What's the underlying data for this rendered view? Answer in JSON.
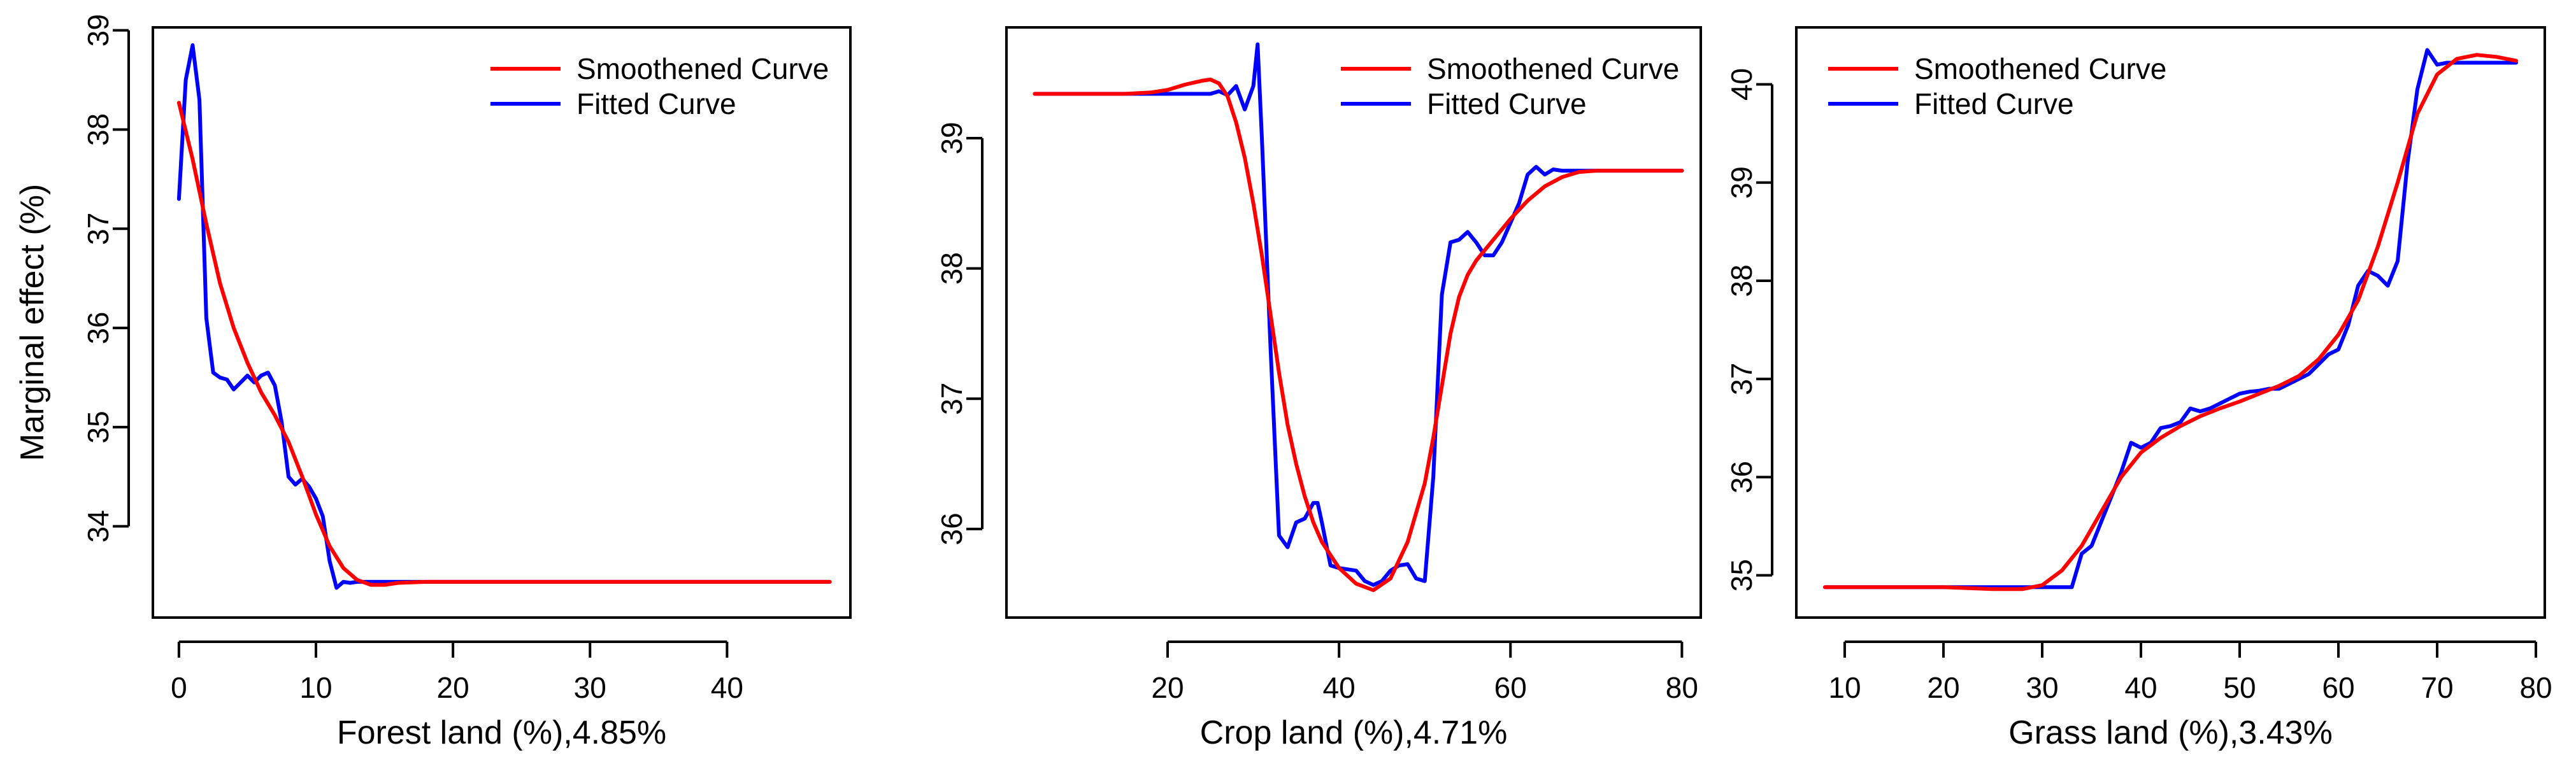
{
  "colors": {
    "smoothened": "#ff0000",
    "fitted": "#0000ff"
  },
  "chart_data": [
    {
      "type": "line",
      "xlabel": "Forest land (%),4.85%",
      "ylabel": "Marginal effect (%)",
      "xlim": [
        -1.9,
        49
      ],
      "ylim": [
        33.08,
        39.03
      ],
      "xticks": [
        0,
        10,
        20,
        30,
        40
      ],
      "yticks": [
        34,
        35,
        36,
        37,
        38,
        39
      ],
      "legend_position": "top-right",
      "series": [
        {
          "name": "Smoothened Curve",
          "color": "#ff0000",
          "x": [
            0,
            1,
            2,
            3,
            4,
            5,
            6,
            7,
            8,
            9,
            10,
            11,
            12,
            13,
            14,
            15,
            16,
            18,
            20,
            25,
            30,
            35,
            40,
            45,
            47.5
          ],
          "y": [
            38.27,
            37.7,
            37.05,
            36.45,
            36.0,
            35.65,
            35.35,
            35.12,
            34.85,
            34.5,
            34.12,
            33.8,
            33.58,
            33.46,
            33.41,
            33.41,
            33.43,
            33.44,
            33.44,
            33.44,
            33.44,
            33.44,
            33.44,
            33.44,
            33.44
          ]
        },
        {
          "name": "Fitted Curve",
          "color": "#0000ff",
          "x": [
            0,
            0.5,
            1,
            1.5,
            2,
            2.5,
            3,
            3.5,
            4,
            4.5,
            5,
            5.5,
            6,
            6.5,
            7,
            7.5,
            8,
            8.5,
            9,
            9.5,
            10,
            10.5,
            11,
            11.5,
            12,
            12.5,
            13,
            14,
            15,
            20,
            25,
            30,
            35,
            40,
            47.5
          ],
          "y": [
            37.3,
            38.5,
            38.85,
            38.3,
            36.1,
            35.55,
            35.5,
            35.48,
            35.38,
            35.45,
            35.52,
            35.45,
            35.52,
            35.55,
            35.42,
            35.05,
            34.5,
            34.42,
            34.48,
            34.4,
            34.28,
            34.1,
            33.65,
            33.38,
            33.44,
            33.43,
            33.44,
            33.44,
            33.44,
            33.44,
            33.44,
            33.44,
            33.44,
            33.44,
            33.44
          ]
        }
      ]
    },
    {
      "type": "line",
      "xlabel": "Crop land (%),4.71%",
      "ylabel": "",
      "xlim": [
        1.2,
        82.2
      ],
      "ylim": [
        35.32,
        39.85
      ],
      "xticks": [
        20,
        40,
        60,
        80
      ],
      "yticks": [
        36,
        37,
        38,
        39
      ],
      "legend_position": "top-right",
      "series": [
        {
          "name": "Smoothened Curve",
          "color": "#ff0000",
          "x": [
            4.5,
            10,
            15,
            18,
            20,
            22,
            24,
            25,
            26,
            27,
            28,
            29,
            30,
            31,
            32,
            33,
            34,
            35,
            36,
            37,
            38,
            40,
            42,
            44,
            46,
            48,
            50,
            51,
            52,
            53,
            54,
            55,
            56,
            58,
            60,
            62,
            64,
            66,
            68,
            70,
            75,
            80
          ],
          "y": [
            39.34,
            39.34,
            39.34,
            39.35,
            39.37,
            39.41,
            39.44,
            39.45,
            39.42,
            39.32,
            39.12,
            38.85,
            38.5,
            38.1,
            37.65,
            37.2,
            36.8,
            36.5,
            36.25,
            36.05,
            35.9,
            35.7,
            35.58,
            35.53,
            35.62,
            35.9,
            36.35,
            36.7,
            37.1,
            37.5,
            37.78,
            37.95,
            38.06,
            38.22,
            38.38,
            38.52,
            38.63,
            38.7,
            38.74,
            38.75,
            38.75,
            38.75
          ]
        },
        {
          "name": "Fitted Curve",
          "color": "#0000ff",
          "x": [
            4.5,
            10,
            20,
            24,
            25,
            26,
            27,
            28,
            29,
            30,
            30.5,
            31,
            32,
            33,
            34,
            35,
            36,
            37,
            37.5,
            38,
            39,
            40,
            42,
            43,
            44,
            45,
            46,
            47,
            48,
            49,
            50,
            51,
            52,
            53,
            54,
            55,
            56,
            57,
            58,
            59,
            60,
            61,
            62,
            63,
            64,
            65,
            66,
            70,
            75,
            80
          ],
          "y": [
            39.34,
            39.34,
            39.34,
            39.34,
            39.34,
            39.36,
            39.33,
            39.4,
            39.22,
            39.4,
            39.72,
            39.0,
            37.4,
            35.95,
            35.86,
            36.05,
            36.08,
            36.2,
            36.2,
            36.05,
            35.72,
            35.7,
            35.68,
            35.6,
            35.57,
            35.6,
            35.68,
            35.72,
            35.73,
            35.62,
            35.6,
            36.4,
            37.8,
            38.2,
            38.22,
            38.28,
            38.2,
            38.1,
            38.1,
            38.2,
            38.35,
            38.5,
            38.72,
            38.78,
            38.72,
            38.76,
            38.75,
            38.75,
            38.75,
            38.75
          ]
        }
      ]
    },
    {
      "type": "line",
      "xlabel": "Grass land (%),3.43%",
      "ylabel": "",
      "xlim": [
        5.1,
        80.9
      ],
      "ylim": [
        34.57,
        40.58
      ],
      "xticks": [
        10,
        20,
        30,
        40,
        50,
        60,
        70,
        80
      ],
      "yticks": [
        35,
        36,
        37,
        38,
        39,
        40
      ],
      "legend_position": "top-left",
      "series": [
        {
          "name": "Smoothened Curve",
          "color": "#ff0000",
          "x": [
            8,
            15,
            20,
            25,
            28,
            30,
            32,
            34,
            36,
            38,
            40,
            42,
            44,
            46,
            48,
            50,
            52,
            54,
            56,
            58,
            60,
            62,
            64,
            66,
            68,
            70,
            72,
            74,
            76,
            78
          ],
          "y": [
            34.88,
            34.88,
            34.88,
            34.86,
            34.86,
            34.9,
            35.05,
            35.3,
            35.65,
            36.0,
            36.25,
            36.4,
            36.52,
            36.62,
            36.7,
            36.77,
            36.85,
            36.93,
            37.03,
            37.2,
            37.45,
            37.8,
            38.35,
            39.0,
            39.7,
            40.1,
            40.26,
            40.3,
            40.28,
            40.24
          ]
        },
        {
          "name": "Fitted Curve",
          "color": "#0000ff",
          "x": [
            8,
            15,
            20,
            25,
            30,
            33,
            34,
            35,
            36,
            37,
            38,
            39,
            40,
            41,
            42,
            43,
            44,
            45,
            46,
            47,
            48,
            49,
            50,
            51,
            52,
            53,
            54,
            55,
            56,
            57,
            58,
            59,
            60,
            61,
            62,
            63,
            64,
            65,
            66,
            67,
            68,
            69,
            70,
            71,
            72,
            73,
            75,
            78
          ],
          "y": [
            34.88,
            34.88,
            34.88,
            34.88,
            34.88,
            34.88,
            35.22,
            35.3,
            35.55,
            35.8,
            36.05,
            36.35,
            36.3,
            36.35,
            36.5,
            36.52,
            36.56,
            36.7,
            36.67,
            36.7,
            36.75,
            36.8,
            36.85,
            36.87,
            36.88,
            36.9,
            36.9,
            36.95,
            37.0,
            37.05,
            37.15,
            37.25,
            37.3,
            37.55,
            37.95,
            38.1,
            38.05,
            37.95,
            38.2,
            39.2,
            39.95,
            40.35,
            40.2,
            40.22,
            40.22,
            40.22,
            40.22,
            40.22
          ]
        }
      ]
    }
  ]
}
